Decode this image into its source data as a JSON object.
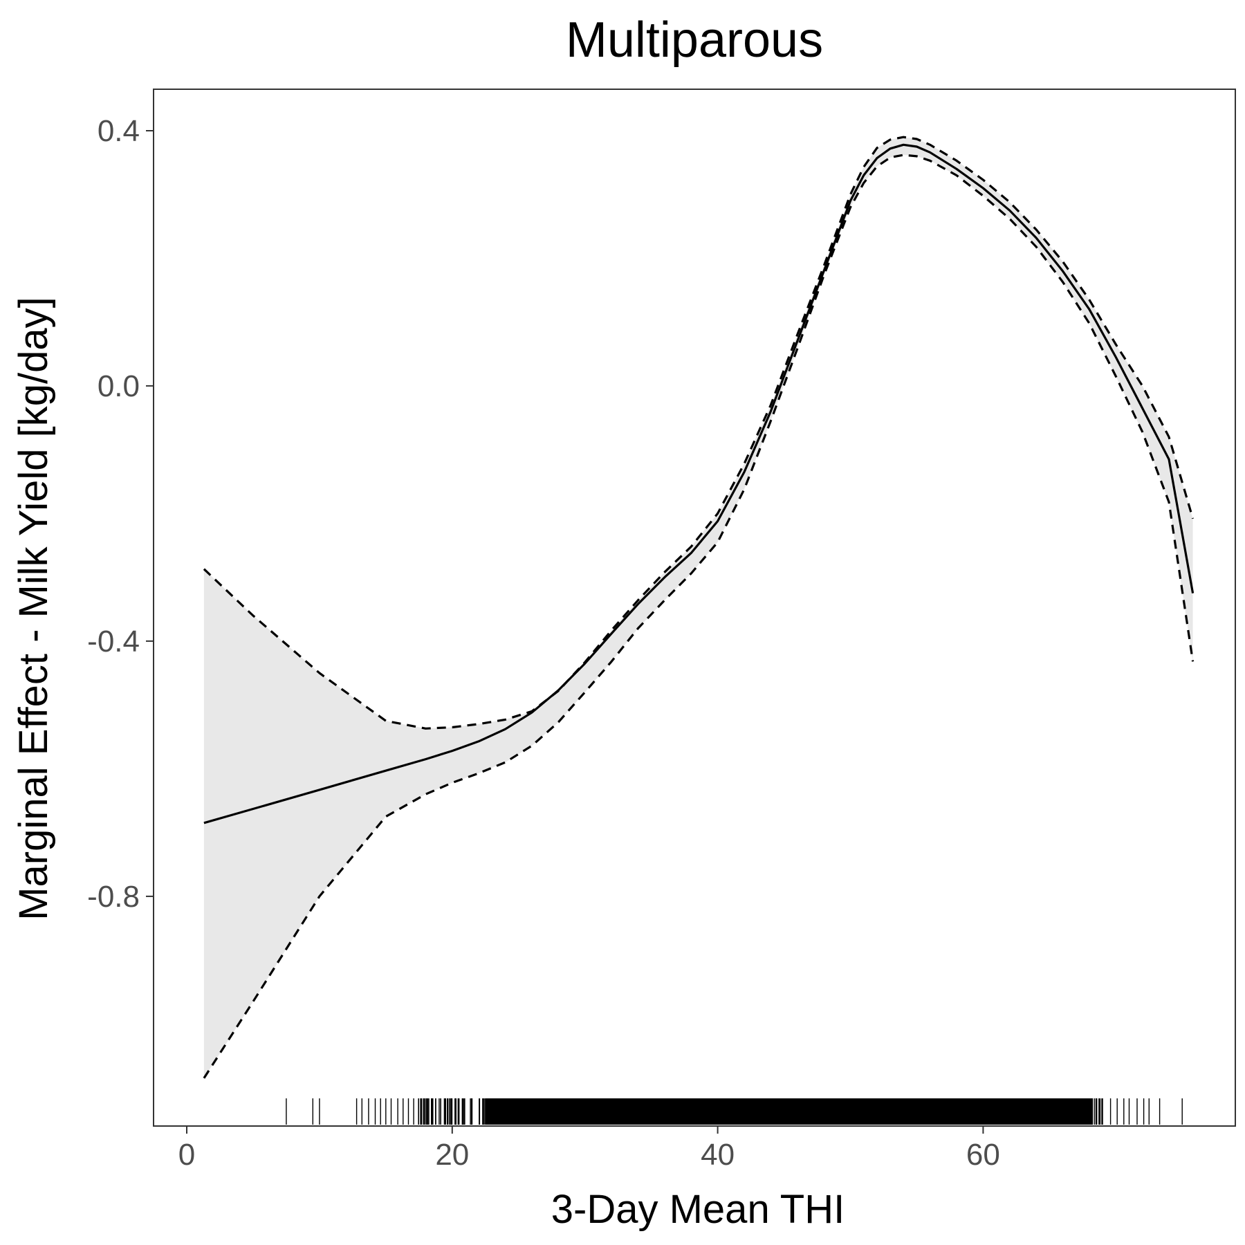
{
  "chart_data": {
    "type": "line",
    "title": "Multiparous",
    "xlabel": "3-Day Mean THI",
    "ylabel": "Marginal Effect - Milk Yield [kg/day]",
    "xlim": [
      -2.5,
      79.0
    ],
    "ylim": [
      -1.16,
      0.465
    ],
    "x_ticks": [
      0,
      20,
      40,
      60
    ],
    "x_tick_labels": [
      "0",
      "20",
      "40",
      "60"
    ],
    "y_ticks": [
      0.4,
      0.0,
      -0.4,
      -0.8
    ],
    "y_tick_labels": [
      "0.4",
      "0.0",
      "-0.4",
      "-0.8"
    ],
    "grid": false,
    "legend": "none",
    "colors": {
      "line": "#000000",
      "ribbon": "#e8e8e8",
      "panel_border": "#333333",
      "tick_label": "#4d4d4d"
    },
    "x": [
      1.3,
      5,
      10,
      15,
      18,
      20,
      22,
      24,
      26,
      28,
      30,
      32,
      34,
      36,
      38,
      40,
      42,
      44,
      46,
      48,
      50,
      51,
      52,
      53,
      54,
      55,
      56,
      58,
      60,
      62,
      64,
      66,
      68,
      70,
      72,
      74,
      75.8
    ],
    "series": [
      {
        "style": "solid",
        "values": [
          -0.685,
          -0.663,
          -0.633,
          -0.603,
          -0.585,
          -0.572,
          -0.557,
          -0.538,
          -0.512,
          -0.477,
          -0.435,
          -0.388,
          -0.342,
          -0.3,
          -0.262,
          -0.212,
          -0.135,
          -0.04,
          0.07,
          0.18,
          0.29,
          0.33,
          0.357,
          0.372,
          0.378,
          0.375,
          0.366,
          0.34,
          0.31,
          0.275,
          0.232,
          0.18,
          0.12,
          0.045,
          -0.035,
          -0.115,
          -0.325
        ]
      },
      {
        "style": "dashed",
        "values": [
          -0.287,
          -0.36,
          -0.45,
          -0.525,
          -0.537,
          -0.535,
          -0.53,
          -0.523,
          -0.51,
          -0.478,
          -0.433,
          -0.383,
          -0.336,
          -0.292,
          -0.252,
          -0.2,
          -0.122,
          -0.03,
          0.08,
          0.188,
          0.3,
          0.343,
          0.373,
          0.386,
          0.39,
          0.387,
          0.378,
          0.353,
          0.323,
          0.288,
          0.245,
          0.195,
          0.135,
          0.065,
          0.0,
          -0.08,
          -0.208
        ]
      },
      {
        "style": "dashed",
        "values": [
          -1.085,
          -0.965,
          -0.8,
          -0.675,
          -0.64,
          -0.622,
          -0.607,
          -0.59,
          -0.564,
          -0.527,
          -0.48,
          -0.432,
          -0.38,
          -0.336,
          -0.294,
          -0.245,
          -0.162,
          -0.055,
          0.058,
          0.173,
          0.28,
          0.318,
          0.344,
          0.358,
          0.362,
          0.36,
          0.353,
          0.33,
          0.298,
          0.262,
          0.218,
          0.163,
          0.098,
          0.015,
          -0.072,
          -0.182,
          -0.432
        ]
      }
    ],
    "rug": "dense tick marks along the bottom of the panel from about x = 7.5 to x = 75"
  }
}
